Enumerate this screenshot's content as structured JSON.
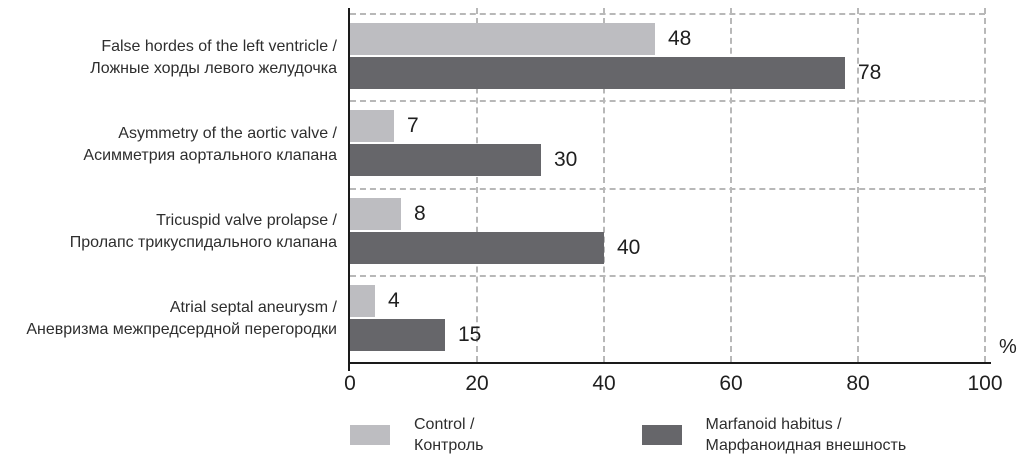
{
  "chart_data": {
    "type": "bar",
    "orientation": "horizontal",
    "title": "",
    "xlabel": "%",
    "ylabel": "",
    "xlim": [
      0,
      100
    ],
    "xticks": [
      0,
      20,
      40,
      60,
      80,
      100
    ],
    "grid": "dashed",
    "legend_position": "bottom",
    "categories": [
      {
        "lines": [
          "False hordes of the left ventricle /",
          "Ложные хорды левого желудочка"
        ]
      },
      {
        "lines": [
          "Asymmetry of the aortic valve /",
          "Асимметрия аортального клапана"
        ]
      },
      {
        "lines": [
          "Tricuspid valve prolapse /",
          "Пролапс трикуспидального клапана"
        ]
      },
      {
        "lines": [
          "Atrial septal aneurysm /",
          "Аневризма межпредсердной перегородки"
        ]
      }
    ],
    "series": [
      {
        "name": "Control / Контроль",
        "color": "#bdbdc1",
        "values": [
          48,
          7,
          8,
          4
        ]
      },
      {
        "name": "Marfanoid habitus / Марфаноидная внешность",
        "color": "#66666a",
        "values": [
          78,
          30,
          40,
          15
        ]
      }
    ]
  },
  "colors": {
    "control_bar": "#bdbdc1",
    "marfanoid_bar": "#66666a",
    "axis": "#1a1a1a",
    "gridline": "#b8b8b8",
    "text": "#2e2e2e"
  },
  "legend": {
    "items": [
      {
        "line1": "Control /",
        "line2": "Контроль",
        "color": "#bdbdc1"
      },
      {
        "line1": "Marfanoid habitus /",
        "line2": "Марфаноидная внешность",
        "color": "#66666a"
      }
    ]
  }
}
